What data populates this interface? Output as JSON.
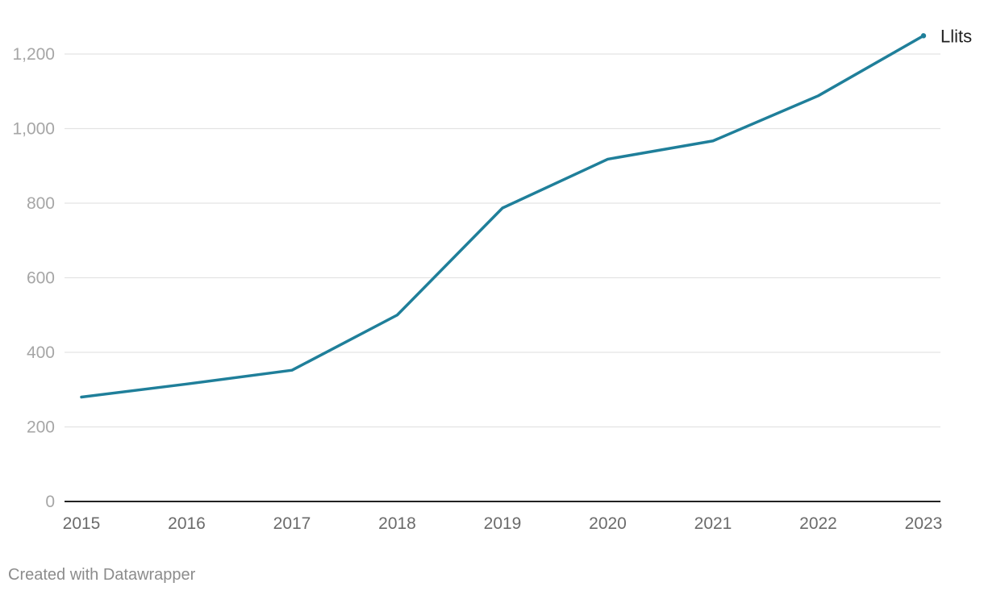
{
  "chart_data": {
    "type": "line",
    "x": [
      "2015",
      "2016",
      "2017",
      "2018",
      "2019",
      "2020",
      "2021",
      "2022",
      "2023"
    ],
    "series": [
      {
        "name": "Llits",
        "values": [
          280,
          315,
          352,
          500,
          787,
          918,
          967,
          1088,
          1249
        ]
      }
    ],
    "yticks": [
      0,
      200,
      400,
      600,
      800,
      1000,
      1200
    ],
    "ytick_labels": [
      "0",
      "200",
      "400",
      "600",
      "800",
      "1,000",
      "1,200"
    ],
    "ylim": [
      0,
      1300
    ],
    "grid": true,
    "legend": "direct-label-right",
    "colors": {
      "line": "#1f7f9a",
      "grid": "#e3e3e3",
      "axis": "#222222"
    }
  },
  "footer": {
    "credit": "Created with Datawrapper"
  }
}
